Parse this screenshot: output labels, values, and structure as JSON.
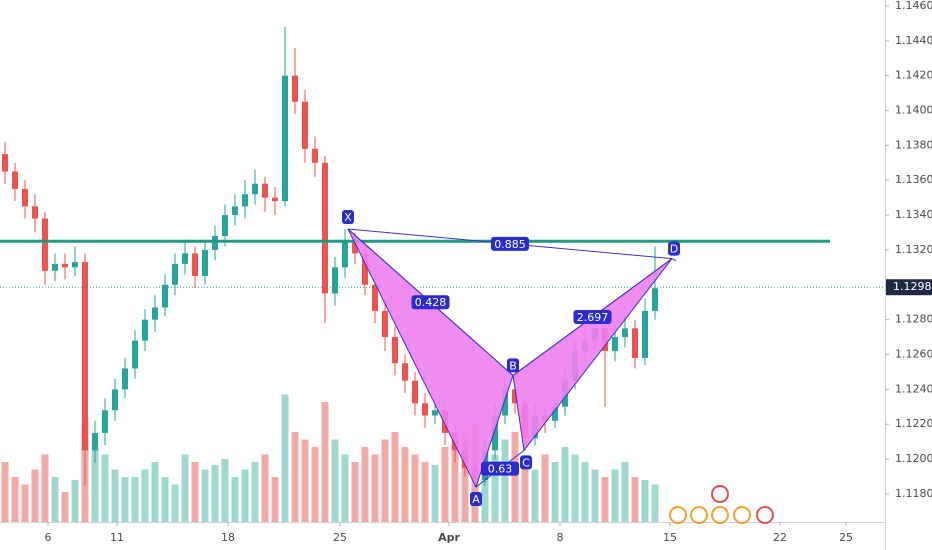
{
  "chart_data": {
    "type": "candlestick",
    "up_color": "#26a69a",
    "down_color": "#ef5350",
    "volume_up_color": "#9fd8cf",
    "volume_down_color": "#f5a9a7",
    "candles": [
      [
        1.1375,
        1.1382,
        1.1358,
        1.1365
      ],
      [
        1.1365,
        1.137,
        1.1348,
        1.1355
      ],
      [
        1.1355,
        1.136,
        1.1338,
        1.1345
      ],
      [
        1.1345,
        1.1352,
        1.133,
        1.1338
      ],
      [
        1.1338,
        1.1342,
        1.13,
        1.1308
      ],
      [
        1.1308,
        1.1318,
        1.1302,
        1.1312
      ],
      [
        1.1312,
        1.1318,
        1.1303,
        1.131
      ],
      [
        1.131,
        1.1322,
        1.1305,
        1.1313
      ],
      [
        1.1313,
        1.1318,
        1.1185,
        1.1205
      ],
      [
        1.1205,
        1.1222,
        1.1198,
        1.1215
      ],
      [
        1.1215,
        1.1235,
        1.1208,
        1.1228
      ],
      [
        1.1228,
        1.1246,
        1.1222,
        1.124
      ],
      [
        1.124,
        1.1258,
        1.1235,
        1.1252
      ],
      [
        1.1252,
        1.1274,
        1.1246,
        1.1268
      ],
      [
        1.1268,
        1.1286,
        1.1262,
        1.128
      ],
      [
        1.128,
        1.1294,
        1.1273,
        1.1287
      ],
      [
        1.1287,
        1.1306,
        1.1282,
        1.13
      ],
      [
        1.13,
        1.1318,
        1.1294,
        1.1312
      ],
      [
        1.1312,
        1.1326,
        1.1306,
        1.1318
      ],
      [
        1.1318,
        1.1322,
        1.1298,
        1.1305
      ],
      [
        1.1305,
        1.1326,
        1.13,
        1.132
      ],
      [
        1.132,
        1.1334,
        1.1314,
        1.1328
      ],
      [
        1.1328,
        1.1346,
        1.1322,
        1.134
      ],
      [
        1.134,
        1.1352,
        1.1334,
        1.1345
      ],
      [
        1.1345,
        1.136,
        1.1338,
        1.1352
      ],
      [
        1.1352,
        1.1366,
        1.1346,
        1.1358
      ],
      [
        1.1358,
        1.1362,
        1.1342,
        1.135
      ],
      [
        1.135,
        1.1356,
        1.134,
        1.1348
      ],
      [
        1.1348,
        1.1448,
        1.1345,
        1.142
      ],
      [
        1.142,
        1.1436,
        1.1398,
        1.1405
      ],
      [
        1.1405,
        1.1412,
        1.137,
        1.1378
      ],
      [
        1.1378,
        1.1385,
        1.1362,
        1.137
      ],
      [
        1.137,
        1.1374,
        1.1278,
        1.1295
      ],
      [
        1.1295,
        1.1316,
        1.1288,
        1.131
      ],
      [
        1.131,
        1.1332,
        1.1304,
        1.1325
      ],
      [
        1.1325,
        1.133,
        1.1312,
        1.1318
      ],
      [
        1.1318,
        1.1322,
        1.1294,
        1.13
      ],
      [
        1.13,
        1.1306,
        1.1278,
        1.1285
      ],
      [
        1.1285,
        1.129,
        1.1262,
        1.127
      ],
      [
        1.127,
        1.1276,
        1.1248,
        1.1255
      ],
      [
        1.1255,
        1.126,
        1.1238,
        1.1245
      ],
      [
        1.1245,
        1.125,
        1.1225,
        1.1232
      ],
      [
        1.1232,
        1.1238,
        1.1218,
        1.1225
      ],
      [
        1.1225,
        1.1236,
        1.122,
        1.1228
      ],
      [
        1.1228,
        1.1232,
        1.1208,
        1.1215
      ],
      [
        1.1215,
        1.122,
        1.1198,
        1.1205
      ],
      [
        1.1205,
        1.121,
        1.119,
        1.1195
      ],
      [
        1.1195,
        1.12,
        1.1184,
        1.1188
      ],
      [
        1.1188,
        1.1212,
        1.1185,
        1.1205
      ],
      [
        1.1205,
        1.1232,
        1.12,
        1.1225
      ],
      [
        1.1225,
        1.1246,
        1.122,
        1.124
      ],
      [
        1.124,
        1.1248,
        1.1226,
        1.1232
      ],
      [
        1.1232,
        1.1236,
        1.1205,
        1.1212
      ],
      [
        1.1212,
        1.1232,
        1.1208,
        1.1225
      ],
      [
        1.1225,
        1.123,
        1.1215,
        1.1222
      ],
      [
        1.1222,
        1.1236,
        1.1218,
        1.123
      ],
      [
        1.123,
        1.1252,
        1.1225,
        1.1245
      ],
      [
        1.1245,
        1.1268,
        1.124,
        1.1262
      ],
      [
        1.1262,
        1.1274,
        1.1256,
        1.1268
      ],
      [
        1.1268,
        1.1282,
        1.1262,
        1.1275
      ],
      [
        1.1275,
        1.128,
        1.123,
        1.1262
      ],
      [
        1.1262,
        1.1276,
        1.1256,
        1.127
      ],
      [
        1.127,
        1.1282,
        1.1264,
        1.1275
      ],
      [
        1.1275,
        1.128,
        1.1252,
        1.1258
      ],
      [
        1.1258,
        1.1292,
        1.1254,
        1.1285
      ],
      [
        1.1285,
        1.1322,
        1.128,
        1.1298
      ]
    ],
    "volumes": [
      40,
      30,
      25,
      35,
      45,
      30,
      20,
      28,
      70,
      50,
      45,
      35,
      30,
      30,
      35,
      40,
      30,
      25,
      45,
      40,
      35,
      38,
      42,
      30,
      35,
      40,
      45,
      30,
      85,
      60,
      55,
      50,
      80,
      55,
      45,
      40,
      50,
      45,
      55,
      60,
      50,
      45,
      40,
      38,
      50,
      55,
      60,
      65,
      50,
      45,
      55,
      60,
      40,
      35,
      45,
      40,
      50,
      45,
      40,
      35,
      30,
      35,
      40,
      30,
      28,
      25
    ],
    "vlim": [
      0,
      100
    ],
    "xlim": [
      0,
      88.5
    ],
    "xticks": [
      {
        "value": 4.8,
        "label": "6"
      },
      {
        "value": 11.7,
        "label": "11"
      },
      {
        "value": 22.8,
        "label": "18"
      },
      {
        "value": 34.0,
        "label": "25"
      },
      {
        "value": 44.9,
        "label": "Apr"
      },
      {
        "value": 56.0,
        "label": "8"
      },
      {
        "value": 67.0,
        "label": "15"
      },
      {
        "value": 78.0,
        "label": "22"
      },
      {
        "value": 84.6,
        "label": "25"
      }
    ],
    "ylim": [
      1.11639,
      1.14634
    ],
    "yticks": [
      {
        "value": 1.118,
        "label": "1.11800"
      },
      {
        "value": 1.12,
        "label": "1.12000"
      },
      {
        "value": 1.122,
        "label": "1.12200"
      },
      {
        "value": 1.124,
        "label": "1.12400"
      },
      {
        "value": 1.126,
        "label": "1.12600"
      },
      {
        "value": 1.128,
        "label": "1.12800"
      },
      {
        "value": 1.13,
        "label": "1.13000"
      },
      {
        "value": 1.132,
        "label": "1.13200"
      },
      {
        "value": 1.134,
        "label": "1.13400"
      },
      {
        "value": 1.136,
        "label": "1.13600"
      },
      {
        "value": 1.138,
        "label": "1.13800"
      },
      {
        "value": 1.14,
        "label": "1.14000"
      },
      {
        "value": 1.142,
        "label": "1.14200"
      },
      {
        "value": 1.144,
        "label": "1.14400"
      },
      {
        "value": 1.146,
        "label": "1.14600"
      }
    ],
    "level": 1.1325,
    "level_color": "#1e9b84",
    "last_price": 1.12986,
    "pattern": {
      "fill": "#ee7eee",
      "stroke": "#3a32c8",
      "points": [
        {
          "label": "X",
          "x": 34.8,
          "y": 1.1332
        },
        {
          "label": "A",
          "x": 47.6,
          "y": 1.1184
        },
        {
          "label": "B",
          "x": 51.3,
          "y": 1.1248
        },
        {
          "label": "C",
          "x": 52.4,
          "y": 1.1205
        },
        {
          "label": "D",
          "x": 67.2,
          "y": 1.1315
        }
      ],
      "ratios": [
        0.885,
        0.428,
        0.63,
        2.697
      ]
    }
  }
}
